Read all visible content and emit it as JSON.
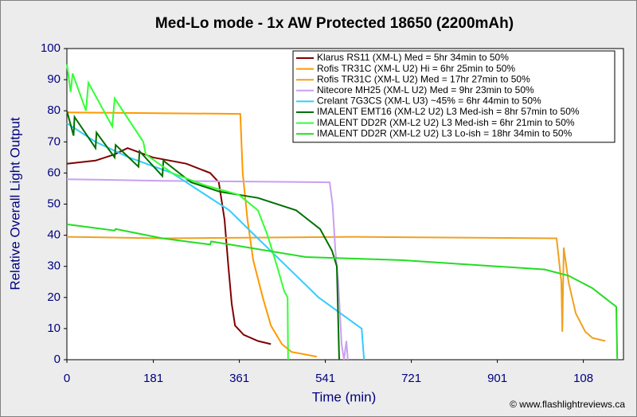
{
  "chart_data": {
    "type": "line",
    "title": "Med-Lo mode - 1x AW Protected 18650 (2200mAh)",
    "ylabel": "Relative Overall Light Output",
    "xlabel": "Time (min)",
    "credit": "© www.flashlightreviews.ca",
    "xlim": [
      0,
      1165
    ],
    "ylim": [
      0,
      100
    ],
    "xticks": [
      0,
      181,
      361,
      541,
      721,
      901,
      {
        "value": 1081,
        "label": "108"
      }
    ],
    "yticks": [
      0,
      10,
      20,
      30,
      40,
      50,
      60,
      70,
      80,
      90,
      100
    ],
    "legend": "upper right",
    "series": [
      {
        "name": "Klarus RS11 (XM-L) Med = 5hr 34min to 50%",
        "color": "#800000",
        "x": [
          0,
          60,
          100,
          127,
          180,
          250,
          300,
          318,
          330,
          338,
          345,
          352,
          370,
          400,
          427
        ],
        "values": [
          63,
          64,
          66,
          68,
          65,
          63,
          60,
          57,
          45,
          30,
          18,
          11,
          8,
          6,
          5
        ]
      },
      {
        "name": "Rofis TR31C (XM-L U2) Hi = 6hr 25min to 50%",
        "color": "#ff9900",
        "x": [
          0,
          363,
          368,
          378,
          390,
          410,
          427,
          450,
          470,
          523
        ],
        "values": [
          79.5,
          79,
          60,
          45,
          32,
          20,
          11,
          5,
          2.5,
          1
        ]
      },
      {
        "name": "Rofis TR31C (XM-L U2) Med = 17hr 27min to 50%",
        "color": "#f0a020",
        "x": [
          0,
          200,
          600,
          1025,
          1035,
          1037,
          1040,
          1050,
          1065,
          1085,
          1100,
          1127
        ],
        "values": [
          39.5,
          39,
          39.5,
          39,
          25,
          9,
          36,
          25,
          15,
          9,
          7,
          6
        ]
      },
      {
        "name": "Nitecore MH25 (XM-L U2) Med = 9hr 23min to 50%",
        "color": "#c8a0f0",
        "x": [
          0,
          200,
          550,
          556,
          562,
          568,
          575,
          580,
          585,
          588
        ],
        "values": [
          58,
          57.5,
          57,
          50,
          35,
          25,
          5,
          0,
          6,
          0
        ]
      },
      {
        "name": "Crelant 7G3CS (XM-L U3) ~45% = 6hr 44min to 50%",
        "color": "#33ccff",
        "x": [
          0,
          60,
          130,
          220,
          270,
          340,
          393,
          460,
          527,
          590,
          617,
          622
        ],
        "values": [
          76,
          70,
          65,
          60,
          55,
          48,
          40,
          30,
          20,
          13,
          10,
          0
        ]
      },
      {
        "name": "IMALENT EMT16 (XM-L2 U2) L3 Med-ish = 8hr 57min to 50%",
        "color": "#007000",
        "x": [
          0,
          14,
          16,
          60,
          62,
          100,
          102,
          150,
          152,
          200,
          202,
          260,
          320,
          400,
          480,
          530,
          555,
          565,
          570
        ],
        "values": [
          80,
          72,
          78,
          68,
          73,
          65,
          69,
          62,
          67,
          59,
          64,
          57,
          54,
          52,
          48,
          42,
          35,
          30,
          0
        ]
      },
      {
        "name": "IMALENT DD2R (XM-L2 U2) L3 Med-ish = 6hr 21min to 50%",
        "color": "#33ff33",
        "x": [
          0,
          8,
          12,
          40,
          45,
          95,
          100,
          160,
          165,
          220,
          290,
          360,
          400,
          420,
          440,
          455,
          462,
          463
        ],
        "values": [
          95,
          86,
          92,
          80,
          89,
          75,
          84,
          70,
          66,
          60,
          56,
          53,
          48,
          40,
          30,
          22,
          20,
          0
        ]
      },
      {
        "name": "IMALENT DD2R (XM-L2 U2) L3 Lo-ish = 18hr 34min to 50%",
        "color": "#22dd22",
        "x": [
          0,
          100,
          102,
          200,
          300,
          302,
          500,
          700,
          900,
          1000,
          1050,
          1100,
          1150,
          1152
        ],
        "values": [
          43.5,
          41.5,
          42,
          39,
          37,
          38,
          33,
          32,
          30,
          29,
          27,
          23,
          17,
          0
        ]
      }
    ]
  }
}
